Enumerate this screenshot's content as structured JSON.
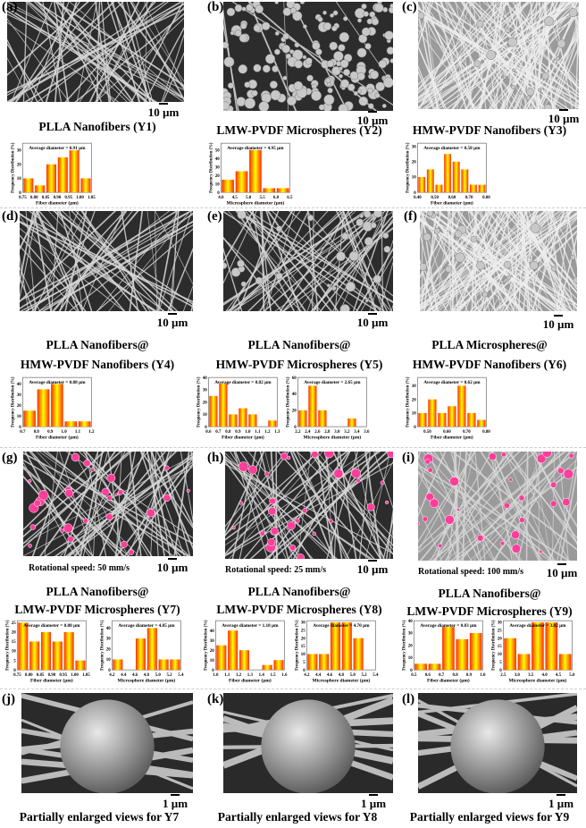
{
  "panels": [
    {
      "label": "(a)",
      "title": "PLLA Nanofibers (Y1)",
      "scale": "10 µm"
    },
    {
      "label": "(b)",
      "title": "LMW-PVDF Microspheres (Y2)",
      "scale": "10 µm"
    },
    {
      "label": "(c)",
      "title": "HMW-PVDF Nanofibers (Y3)",
      "scale": "10 µm"
    },
    {
      "label": "(d)",
      "title1": "PLLA Nanofibers@",
      "title2": "HMW-PVDF Nanofibers (Y4)",
      "scale": "10 µm"
    },
    {
      "label": "(e)",
      "title1": "PLLA Nanofibers@",
      "title2": "HMW-PVDF Microspheres (Y5)",
      "scale": "10 µm"
    },
    {
      "label": "(f)",
      "title1": "PLLA Microspheres@",
      "title2": "HMW-PVDF Nanofibers (Y6)",
      "scale": "10 µm"
    },
    {
      "label": "(g)",
      "note": "Rotational speed: 50 mm/s",
      "title1": "PLLA Nanofibers@",
      "title2": "LMW-PVDF Microspheres (Y7)",
      "scale": "10 µm"
    },
    {
      "label": "(h)",
      "note": "Rotational speed: 25 mm/s",
      "title1": "PLLA Nanofibers@",
      "title2": "LMW-PVDF Microspheres (Y8)",
      "scale": "10 µm"
    },
    {
      "label": "(i)",
      "note": "Rotational speed: 100 mm/s",
      "title1": "PLLA Nanofibers@",
      "title2": "LMW-PVDF Microspheres (Y9)",
      "scale": "10 µm"
    },
    {
      "label": "(j)",
      "title": "Partially enlarged views for Y7",
      "scale": "1 µm"
    },
    {
      "label": "(k)",
      "title": "Partially enlarged views for Y8",
      "scale": "1 µm"
    },
    {
      "label": "(l)",
      "title": "Partially enlarged views for Y9",
      "scale": "1 µm"
    }
  ],
  "colors": {
    "bar_edge": "#ff2a00",
    "bar_center": "#ffff00",
    "highlight": "#ff3d9a"
  },
  "chart_data": [
    {
      "type": "bar",
      "annotation": "Average diameter = 0.91 µm",
      "xlabel": "Fiber diameter (µm)",
      "ylabel": "Frequency Distribution (%)",
      "xticks": [
        "0.75",
        "0.80",
        "0.85",
        "0.90",
        "0.95",
        "1.00",
        "1.05"
      ],
      "xtick_labels_shown": [
        "0.75",
        "",
        "0.85",
        "",
        "0.95",
        "",
        "1.05"
      ],
      "values": [
        10,
        5,
        20,
        25,
        30,
        10
      ],
      "yticks": [
        0,
        10,
        20,
        30
      ],
      "ylim": [
        0,
        35
      ]
    },
    {
      "type": "bar",
      "annotation": "Average diameter = 4.95 µm",
      "xlabel": "Microsphere diameter (µm)",
      "ylabel": "Frequency Distribution (%)",
      "xticks": [
        "4.0",
        "4.5",
        "5.0",
        "5.5",
        "6.0",
        "6.5"
      ],
      "values": [
        15,
        25,
        50,
        5,
        5
      ],
      "yticks": [
        0,
        10,
        20,
        30,
        40,
        50
      ],
      "ylim": [
        0,
        58
      ]
    },
    {
      "type": "bar",
      "annotation": "Average diameter = 0.58 µm",
      "xlabel": "Fiber diameter (µm)",
      "ylabel": "Frequency Distribution (%)",
      "xticks": [
        "0.40",
        "",
        "0.50",
        "",
        "0.60",
        "",
        "0.70",
        "",
        "0.80"
      ],
      "values": [
        10,
        15,
        5,
        25,
        20,
        15,
        5,
        5
      ],
      "yticks": [
        0,
        10,
        20,
        30
      ],
      "ylim": [
        0,
        32
      ]
    },
    {
      "type": "bar",
      "annotation": "Average diameter = 0.88 µm",
      "xlabel": "Fiber diameter (µm)",
      "ylabel": "Frequency Distribution (%)",
      "xticks": [
        "0.7",
        "0.8",
        "0.9",
        "1.0",
        "1.1",
        "1.2"
      ],
      "values": [
        15,
        35,
        40,
        5,
        5
      ],
      "yticks": [
        0,
        10,
        20,
        30,
        40
      ],
      "ylim": [
        0,
        46
      ]
    },
    {
      "type": "bar",
      "annotation": "Average diameter = 0.82 µm",
      "xlabel": "Fiber diameter (µm)",
      "ylabel": "Frequency Distribution (%)",
      "xticks": [
        "0.6",
        "0.7",
        "0.8",
        "0.9",
        "1.0",
        "1.1",
        "1.2",
        "1.3"
      ],
      "values": [
        25,
        35,
        10,
        15,
        10,
        0,
        5
      ],
      "yticks": [
        0,
        10,
        20,
        30,
        40
      ],
      "ylim": [
        0,
        40
      ]
    },
    {
      "type": "bar",
      "annotation": "Average diameter = 2.65 µm",
      "xlabel": "Microsphere diameter (µm)",
      "ylabel": "Frequency Distribution (%)",
      "xticks": [
        "2.2",
        "2.4",
        "2.6",
        "2.8",
        "3.0",
        "3.2",
        "3.4",
        "3.6"
      ],
      "values": [
        20,
        50,
        20,
        0,
        0,
        10
      ],
      "yticks": [
        0,
        20,
        40,
        60
      ],
      "ylim": [
        0,
        60
      ]
    },
    {
      "type": "bar",
      "annotation": "Average diameter = 0.62 µm",
      "xlabel": "Fiber diameter (µm)",
      "ylabel": "Frequency Distribution (%)",
      "xticks": [
        "",
        "0.50",
        "",
        "0.60",
        "",
        "0.70",
        "",
        "0.80"
      ],
      "values": [
        10,
        20,
        10,
        15,
        30,
        10,
        5
      ],
      "yticks": [
        0,
        10,
        20,
        30
      ],
      "ylim": [
        0,
        36
      ]
    },
    {
      "type": "bar",
      "annotation": "Average diameter = 0.88 µm",
      "xlabel": "Fiber diameter (µm)",
      "ylabel": "Frequency Distribution (%)",
      "xticks": [
        "0.75",
        "0.80",
        "0.85",
        "0.90",
        "0.95",
        "1.00",
        "1.05"
      ],
      "values": [
        25,
        15,
        20,
        15,
        20,
        5
      ],
      "yticks": [
        0,
        5,
        10,
        15,
        20,
        25
      ],
      "ylim": [
        0,
        26
      ]
    },
    {
      "type": "bar",
      "annotation": "Average diameter = 4.85 µm",
      "xlabel": "Microsphere diameter (µm)",
      "ylabel": "Frequency Distribution (%)",
      "xticks": [
        "4.2",
        "4.4",
        "4.6",
        "4.8",
        "5.0",
        "5.2",
        "5.4"
      ],
      "values": [
        10,
        0,
        30,
        40,
        10,
        10
      ],
      "yticks": [
        0,
        10,
        20,
        30,
        40
      ],
      "ylim": [
        0,
        47
      ]
    },
    {
      "type": "bar",
      "annotation": "Average diameter = 1.18 µm",
      "xlabel": "Fiber diameter (µm)",
      "ylabel": "Frequency Distribution (%)",
      "xticks": [
        "1.0",
        "1.1",
        "1.2",
        "1.3",
        "1.4",
        "1.5",
        "1.6"
      ],
      "values": [
        25,
        40,
        20,
        0,
        5,
        10
      ],
      "yticks": [
        0,
        10,
        20,
        30,
        40
      ],
      "ylim": [
        0,
        50
      ]
    },
    {
      "type": "bar",
      "annotation": "Average diameter = 4.70 µm",
      "xlabel": "Microsphere diameter (µm)",
      "ylabel": "Frequency Distribution (%)",
      "xticks": [
        "4.2",
        "4.4",
        "4.6",
        "4.8",
        "5.0",
        "5.2",
        "5.4"
      ],
      "values": [
        10,
        10,
        30,
        30,
        20
      ],
      "yticks": [
        0,
        5,
        10,
        15,
        20,
        25,
        30
      ],
      "ylim": [
        0,
        31
      ]
    },
    {
      "type": "bar",
      "annotation": "Average diameter = 0.83 µm",
      "xlabel": "Fiber diameter (µm)",
      "ylabel": "Frequency Distribution (%)",
      "xticks": [
        "0.5",
        "0.6",
        "0.7",
        "0.8",
        "0.9",
        "1.0"
      ],
      "values": [
        5,
        5,
        35,
        25,
        30
      ],
      "yticks": [
        0,
        10,
        20,
        30,
        40
      ],
      "ylim": [
        0,
        40
      ]
    },
    {
      "type": "bar",
      "annotation": "Average diameter = 3.82 µm",
      "xlabel": "Microsphere diameter (µm)",
      "ylabel": "Frequency Distribution (%)",
      "xticks": [
        "2.5",
        "3.0",
        "3.5",
        "4.0",
        "4.5",
        "5.0"
      ],
      "values": [
        20,
        10,
        30,
        30,
        10
      ],
      "yticks": [
        0,
        5,
        10,
        15,
        20,
        25,
        30
      ],
      "ylim": [
        0,
        31
      ]
    }
  ]
}
